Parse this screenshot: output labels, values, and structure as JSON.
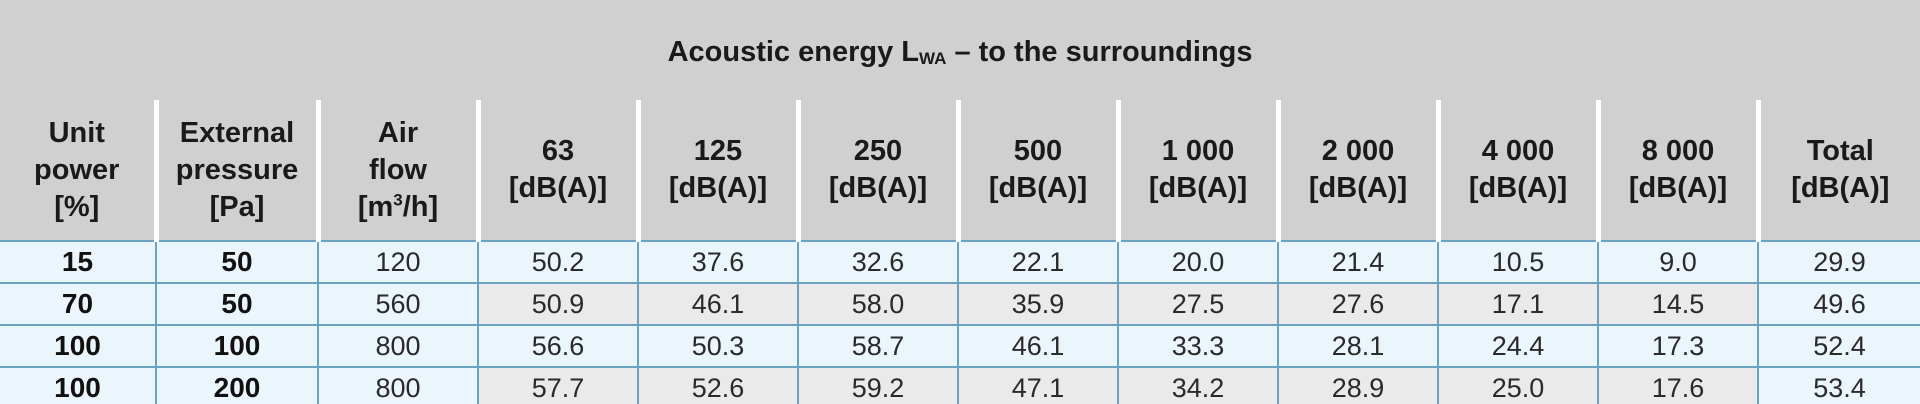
{
  "title": {
    "prefix": "Acoustic energy L",
    "subscript": "WA",
    "suffix": " – to the surroundings"
  },
  "headers": {
    "unit_power": [
      "Unit",
      "power",
      "[%]"
    ],
    "external_pressure": [
      "External",
      "pressure",
      "[Pa]"
    ],
    "air_flow": [
      "Air",
      "flow",
      "[m",
      "3",
      "/h]"
    ],
    "frequencies": [
      {
        "freq": "63",
        "unit": "[dB(A)]"
      },
      {
        "freq": "125",
        "unit": "[dB(A)]"
      },
      {
        "freq": "250",
        "unit": "[dB(A)]"
      },
      {
        "freq": "500",
        "unit": "[dB(A)]"
      },
      {
        "freq": "1 000",
        "unit": "[dB(A)]"
      },
      {
        "freq": "2 000",
        "unit": "[dB(A)]"
      },
      {
        "freq": "4 000",
        "unit": "[dB(A)]"
      },
      {
        "freq": "8 000",
        "unit": "[dB(A)]"
      }
    ],
    "total": [
      "Total",
      "[dB(A)]"
    ]
  },
  "rows": [
    {
      "unit_power": "15",
      "external_pressure": "50",
      "air_flow": "120",
      "values": [
        "50.2",
        "37.6",
        "32.6",
        "22.1",
        "20.0",
        "21.4",
        "10.5",
        "9.0"
      ],
      "total": "29.9"
    },
    {
      "unit_power": "70",
      "external_pressure": "50",
      "air_flow": "560",
      "values": [
        "50.9",
        "46.1",
        "58.0",
        "35.9",
        "27.5",
        "27.6",
        "17.1",
        "14.5"
      ],
      "total": "49.6"
    },
    {
      "unit_power": "100",
      "external_pressure": "100",
      "air_flow": "800",
      "values": [
        "56.6",
        "50.3",
        "58.7",
        "46.1",
        "33.3",
        "28.1",
        "24.4",
        "17.3"
      ],
      "total": "52.4"
    },
    {
      "unit_power": "100",
      "external_pressure": "200",
      "air_flow": "800",
      "values": [
        "57.7",
        "52.6",
        "59.2",
        "47.1",
        "34.2",
        "28.9",
        "25.0",
        "17.6"
      ],
      "total": "53.4"
    }
  ],
  "colors": {
    "header_bg": "#d0d0d1",
    "row_light": "#ebf5fc",
    "row_grey": "#eaeaea",
    "grid_line": "#6aa3c2"
  }
}
